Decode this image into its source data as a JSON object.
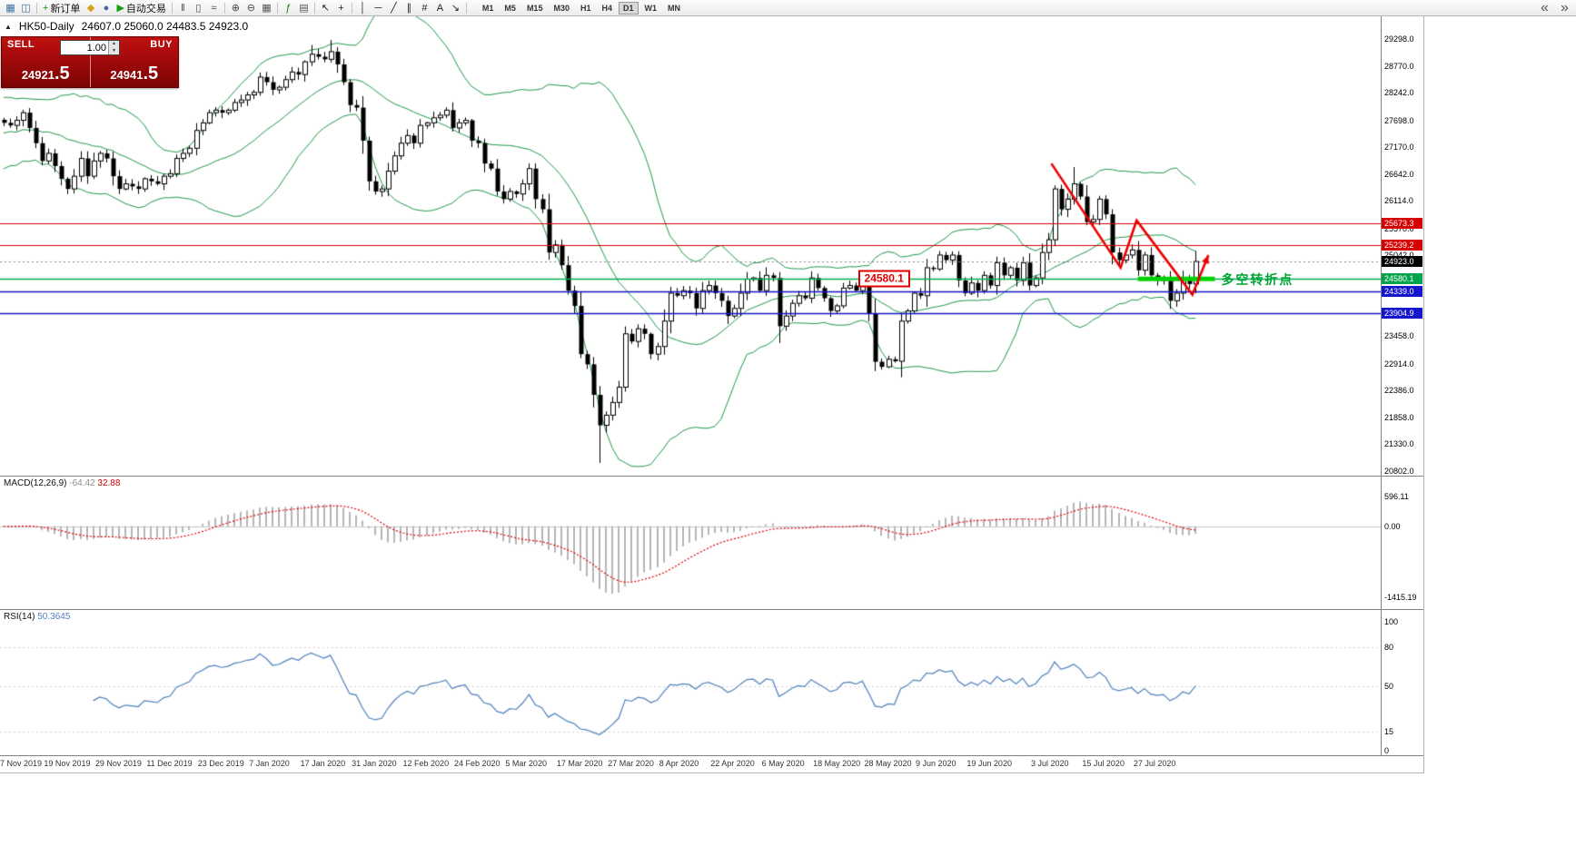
{
  "toolbar": {
    "items": [
      {
        "name": "new-chart-button",
        "glyph": "▦",
        "color": "#3b6ea5"
      },
      {
        "name": "profiles-button",
        "glyph": "◫",
        "color": "#3b6ea5"
      },
      {
        "type": "sep"
      },
      {
        "name": "new-order-button",
        "glyph": "+",
        "color": "#13a113",
        "label": "新订单"
      },
      {
        "name": "alerts-button",
        "glyph": "◆",
        "color": "#d4a017"
      },
      {
        "name": "market-watch-button",
        "glyph": "●",
        "color": "#3b6ea5"
      },
      {
        "name": "autotrade-button",
        "glyph": "▶",
        "color": "#13a113",
        "label": "自动交易"
      },
      {
        "type": "sep"
      },
      {
        "name": "bar-chart-button",
        "glyph": "‖",
        "color": "#444444"
      },
      {
        "name": "candlestick-chart-button",
        "glyph": "▯",
        "color": "#444444"
      },
      {
        "name": "line-chart-button",
        "glyph": "≈",
        "color": "#444444"
      },
      {
        "type": "sep"
      },
      {
        "name": "zoom-in-button",
        "glyph": "⊕",
        "color": "#444444"
      },
      {
        "name": "zoom-out-button",
        "glyph": "⊖",
        "color": "#444444"
      },
      {
        "name": "tile-windows-button",
        "glyph": "▦",
        "color": "#555555"
      },
      {
        "type": "sep"
      },
      {
        "name": "indicators-button",
        "glyph": "ƒ",
        "color": "#117a11"
      },
      {
        "name": "templates-button",
        "glyph": "▤",
        "color": "#555555"
      },
      {
        "type": "sep"
      },
      {
        "name": "cursor-button",
        "glyph": "↖",
        "color": "#222222"
      },
      {
        "name": "crosshair-button",
        "glyph": "+",
        "color": "#222222"
      },
      {
        "type": "sep"
      },
      {
        "name": "vertical-line-button",
        "glyph": "│",
        "color": "#222222"
      },
      {
        "name": "horizontal-line-button",
        "glyph": "─",
        "color": "#222222"
      },
      {
        "name": "trendline-button",
        "glyph": "╱",
        "color": "#222222"
      },
      {
        "name": "channel-button",
        "glyph": "∥",
        "color": "#222222"
      },
      {
        "name": "fibonacci-button",
        "glyph": "#",
        "color": "#222222"
      },
      {
        "name": "text-button",
        "glyph": "A",
        "color": "#222222"
      },
      {
        "name": "arrows-button",
        "glyph": "↘",
        "color": "#222222"
      },
      {
        "type": "sep"
      }
    ],
    "timeframes": [
      "M1",
      "M5",
      "M15",
      "M30",
      "H1",
      "H4",
      "D1",
      "W1",
      "MN"
    ],
    "active_timeframe": "D1",
    "right_icons": [
      {
        "name": "toolbar-overflow-left-icon",
        "glyph": "«"
      },
      {
        "name": "toolbar-overflow-right-icon",
        "glyph": "»"
      }
    ]
  },
  "chart": {
    "collapse_glyph": "▲",
    "title": "HK50-Daily",
    "ohlc": "24607.0 25060.0 24483.5 24923.0"
  },
  "trade_panel": {
    "sell_label": "SELL",
    "buy_label": "BUY",
    "sell_price_small": "24921",
    "sell_price_big": ".5",
    "buy_price_small": "24941",
    "buy_price_big": ".5",
    "volume": "1.00",
    "spin_up_glyph": "▲",
    "spin_down_glyph": "▼"
  },
  "colors": {
    "bull": "#ffffff",
    "bear": "#000000",
    "outline": "#000000",
    "band": "#1f9a4a",
    "macd_hist": "#b6b6b6",
    "macd_signal": "#e00000",
    "rsi_line": "#4f81bd",
    "arrow": "#ee0000",
    "segment": "#00d200"
  },
  "chart_data": {
    "type": "candlestick",
    "symbol": "HK50",
    "timeframe": "Daily",
    "ohlc_display": {
      "open": "24607.0",
      "high": "25060.0",
      "low": "24483.5",
      "close": "24923.0"
    },
    "ylim": [
      20710,
      29745
    ],
    "candle_area_fraction": 0.868,
    "y_ticks": [
      "29298.0",
      "28770.0",
      "28242.0",
      "27698.0",
      "27170.0",
      "26642.0",
      "26114.0",
      "25570.0",
      "25042.0",
      "23458.0",
      "22914.0",
      "22386.0",
      "21858.0",
      "21330.0",
      "20802.0"
    ],
    "closes": [
      27650,
      27600,
      27700,
      27850,
      27550,
      27250,
      26900,
      27050,
      26800,
      26550,
      26350,
      26600,
      26950,
      26600,
      26900,
      27050,
      26950,
      26600,
      26350,
      26450,
      26400,
      26350,
      26550,
      26500,
      26450,
      26600,
      26650,
      26950,
      27050,
      27150,
      27500,
      27650,
      27850,
      27900,
      27850,
      27900,
      28050,
      28100,
      28200,
      28250,
      28550,
      28450,
      28300,
      28350,
      28500,
      28650,
      28600,
      28850,
      29000,
      28950,
      28900,
      29050,
      28800,
      28450,
      28000,
      27950,
      27300,
      26500,
      26300,
      26350,
      26700,
      27000,
      27250,
      27400,
      27250,
      27600,
      27650,
      27750,
      27800,
      27900,
      27550,
      27650,
      27700,
      27300,
      27250,
      26850,
      26750,
      26300,
      26150,
      26300,
      26250,
      26450,
      26750,
      26150,
      25950,
      25100,
      25250,
      24850,
      24350,
      24050,
      23100,
      22900,
      22300,
      21700,
      21900,
      22150,
      22450,
      23500,
      23350,
      23600,
      23500,
      23100,
      23250,
      23750,
      24300,
      24250,
      24350,
      24300,
      24000,
      24350,
      24450,
      24300,
      24150,
      23850,
      24000,
      24300,
      24575,
      24600,
      24350,
      24650,
      24600,
      23650,
      23850,
      24100,
      24250,
      24200,
      24600,
      24400,
      24200,
      23950,
      24050,
      24400,
      24450,
      24350,
      24500,
      23900,
      22950,
      22850,
      23000,
      22960,
      23750,
      23950,
      24300,
      24250,
      24800,
      24775,
      25050,
      24950,
      25050,
      24550,
      24300,
      24500,
      24350,
      24650,
      24450,
      24900,
      24650,
      24800,
      24550,
      24900,
      24450,
      24600,
      25100,
      25350,
      26350,
      25950,
      26150,
      26450,
      26200,
      25700,
      25750,
      26150,
      25850,
      25100,
      24950,
      25050,
      25150,
      24750,
      25050,
      24650,
      24550,
      24600,
      24150,
      24300,
      24600,
      24480,
      24923
    ],
    "high_overrides": {
      "48": 29180,
      "51": 29280,
      "167": 26780
    },
    "low_overrides": {
      "93": 20960
    },
    "bollinger": {
      "period": 20,
      "deviation": 2,
      "pre_window": [
        27800,
        27000,
        27900,
        26900,
        27700,
        27100,
        27800,
        27000,
        27600,
        27200,
        27900,
        27100,
        27800,
        27000,
        27700,
        27300,
        27900,
        27200,
        27800,
        27400
      ]
    },
    "levels": [
      {
        "value": 25673.3,
        "label": "25673.3",
        "color": "#d60000",
        "width": 1,
        "style": "solid",
        "badge_bg": "#d60000"
      },
      {
        "value": 25239.2,
        "label": "25239.2",
        "color": "#d60000",
        "width": 1,
        "style": "solid",
        "badge_bg": "#d60000"
      },
      {
        "value": 24923.0,
        "label": "24923.0",
        "color": "#888888",
        "width": 1,
        "style": "dot",
        "badge_bg": "#000000"
      },
      {
        "value": 24580.1,
        "label": "24580.1",
        "color": "#00b050",
        "width": 1.4,
        "style": "solid",
        "badge_bg": "#00a44c"
      },
      {
        "value": 24339.0,
        "label": "24339.0",
        "color": "#1515cc",
        "width": 1.4,
        "style": "solid",
        "badge_bg": "#1515cc"
      },
      {
        "value": 23904.9,
        "label": "23904.9",
        "color": "#1515cc",
        "width": 1.4,
        "style": "solid",
        "badge_bg": "#1515cc"
      }
    ],
    "annotations": {
      "price_label": {
        "text": "24580.1",
        "i": 138,
        "p": 24580.1
      },
      "turning_text": {
        "text": "多空转折点",
        "i": 190,
        "p": 24560
      },
      "arrow": {
        "points": [
          [
            163.5,
            26850
          ],
          [
            174.3,
            24800
          ],
          [
            176.8,
            25730
          ],
          [
            185.5,
            24270
          ],
          [
            188,
            25050
          ]
        ]
      },
      "segment": {
        "p": 24580.1,
        "i1": 177,
        "i2": 189
      }
    },
    "x_labels": [
      {
        "label": "7 Nov 2019",
        "i": 2
      },
      {
        "label": "19 Nov 2019",
        "i": 10
      },
      {
        "label": "29 Nov 2019",
        "i": 18
      },
      {
        "label": "11 Dec 2019",
        "i": 26
      },
      {
        "label": "23 Dec 2019",
        "i": 34
      },
      {
        "label": "7 Jan 2020",
        "i": 42
      },
      {
        "label": "17 Jan 2020",
        "i": 50
      },
      {
        "label": "31 Jan 2020",
        "i": 58
      },
      {
        "label": "12 Feb 2020",
        "i": 66
      },
      {
        "label": "24 Feb 2020",
        "i": 74
      },
      {
        "label": "5 Mar 2020",
        "i": 82
      },
      {
        "label": "17 Mar 2020",
        "i": 90
      },
      {
        "label": "27 Mar 2020",
        "i": 98
      },
      {
        "label": "8 Apr 2020",
        "i": 106
      },
      {
        "label": "22 Apr 2020",
        "i": 114
      },
      {
        "label": "6 May 2020",
        "i": 122
      },
      {
        "label": "18 May 2020",
        "i": 130
      },
      {
        "label": "28 May 2020",
        "i": 138
      },
      {
        "label": "9 Jun 2020",
        "i": 146
      },
      {
        "label": "19 Jun 2020",
        "i": 154
      },
      {
        "label": "3 Jul 2020",
        "i": 164
      },
      {
        "label": "15 Jul 2020",
        "i": 172
      },
      {
        "label": "27 Jul 2020",
        "i": 180
      }
    ],
    "macd": {
      "name": "MACD(12,26,9)",
      "value_main": "-64.42",
      "value_signal": "32.88",
      "params": [
        12,
        26,
        9
      ],
      "ylim": [
        -1650,
        990
      ],
      "y_ticks": [
        "596.11",
        "0.00",
        "-1415.19"
      ]
    },
    "rsi": {
      "name": "RSI(14)",
      "value": "50.3645",
      "period": 14,
      "levels": [
        80,
        50,
        15
      ],
      "y_ticks": [
        "100",
        "80",
        "50",
        "15",
        "0"
      ]
    }
  }
}
